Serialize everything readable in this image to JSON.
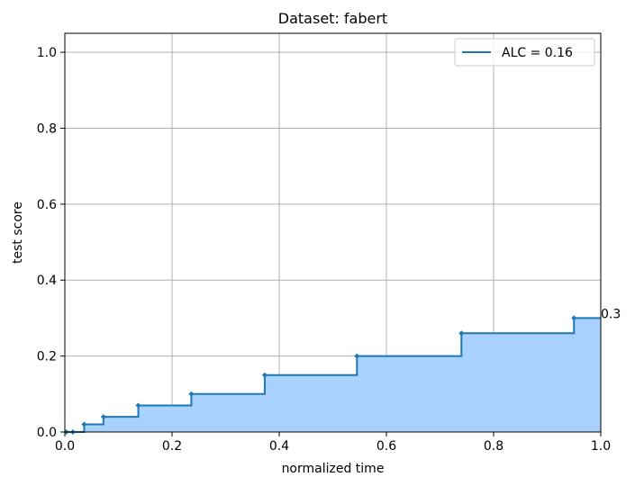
{
  "chart_data": {
    "type": "line",
    "title": "Dataset: fabert",
    "xlabel": "normalized time",
    "ylabel": "test score",
    "xlim": [
      0.0,
      1.0
    ],
    "ylim": [
      0.0,
      1.05
    ],
    "grid": true,
    "xticks": [
      0.0,
      0.2,
      0.4,
      0.6,
      0.8,
      1.0
    ],
    "xtick_labels": [
      "0.0",
      "0.2",
      "0.4",
      "0.6",
      "0.8",
      "1.0"
    ],
    "yticks": [
      0.0,
      0.2,
      0.4,
      0.6,
      0.8,
      1.0
    ],
    "ytick_labels": [
      "0.0",
      "0.2",
      "0.4",
      "0.6",
      "0.8",
      "1.0"
    ],
    "legend": {
      "position": "upper right",
      "entries": [
        "ALC = 0.16"
      ]
    },
    "series": [
      {
        "name": "ALC = 0.16",
        "color": "#1f77b4",
        "fill_color": "#a8d1fd",
        "drawstyle": "steps-post",
        "x": [
          0.003,
          0.015,
          0.036,
          0.072,
          0.137,
          0.236,
          0.373,
          0.545,
          0.74,
          0.95,
          1.0
        ],
        "y": [
          0.0,
          0.0,
          0.02,
          0.04,
          0.07,
          0.1,
          0.15,
          0.2,
          0.26,
          0.3,
          0.3
        ]
      }
    ],
    "annotations": [
      {
        "text": "0.3",
        "x": 1.0,
        "y": 0.3
      }
    ]
  }
}
